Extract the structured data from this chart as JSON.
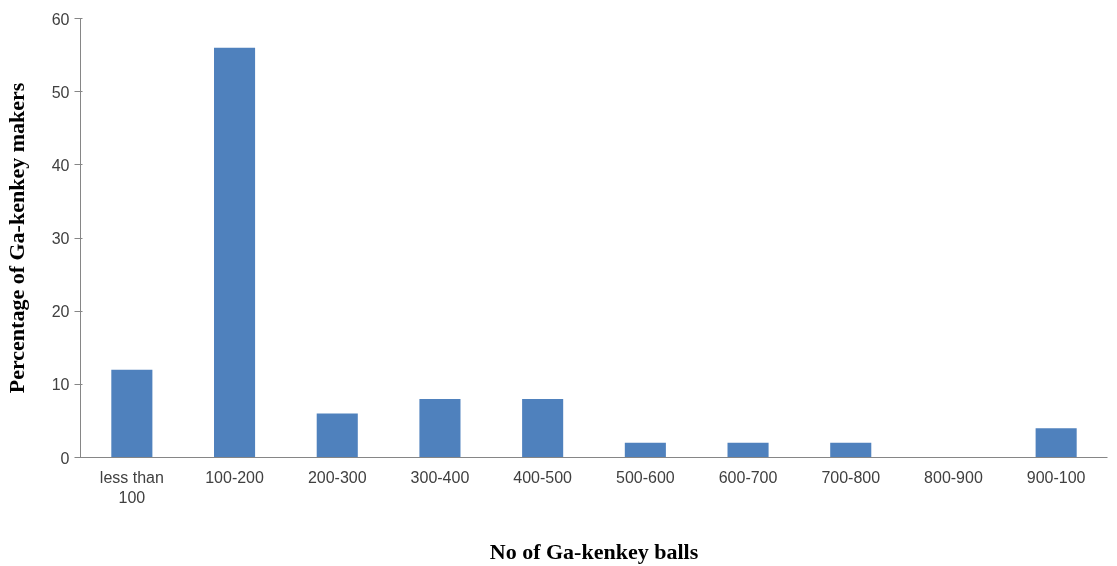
{
  "chart_data": {
    "type": "bar",
    "xlabel": "No of Ga-kenkey balls",
    "ylabel": "Percentage of Ga-kenkey makers",
    "categories": [
      "less than 100",
      "100-200",
      "200-300",
      "300-400",
      "400-500",
      "500-600",
      "600-700",
      "700-800",
      "800-900",
      "900-100"
    ],
    "values": [
      12,
      56,
      6,
      8,
      8,
      2,
      2,
      2,
      0,
      4
    ],
    "color": "#4f81bd",
    "ylim": [
      0,
      60
    ],
    "yticks": [
      0,
      10,
      20,
      30,
      40,
      50,
      60
    ],
    "grid": false
  }
}
